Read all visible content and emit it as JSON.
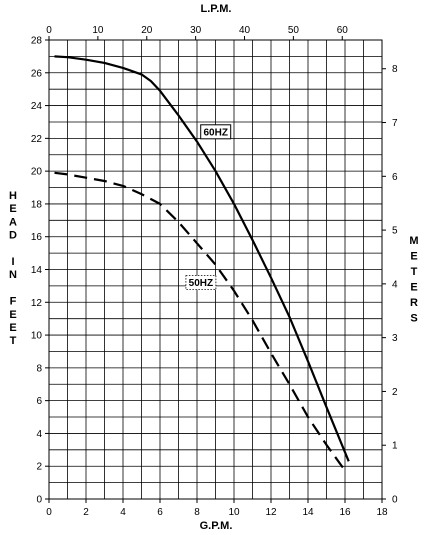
{
  "chart_data": {
    "type": "line",
    "top_axis_label": "L.P.M.",
    "bottom_axis_label": "G.P.M.",
    "left_axis_label": "HEAD IN FEET",
    "left_axis_label_lines": [
      "H",
      "E",
      "A",
      "D",
      "",
      "I",
      "N",
      "",
      "F",
      "E",
      "E",
      "T"
    ],
    "right_axis_label": "METERS",
    "right_axis_label_lines": [
      "M",
      "E",
      "T",
      "E",
      "R",
      "S"
    ],
    "x_gpm_range": [
      0,
      18
    ],
    "x_gpm_ticks": [
      0,
      2,
      4,
      6,
      8,
      10,
      12,
      14,
      16,
      18
    ],
    "x_lpm_ticks": [
      0,
      10,
      20,
      30,
      40,
      50,
      60
    ],
    "lpm_per_gpm": 3.785,
    "y_feet_range": [
      0,
      28
    ],
    "y_feet_ticks": [
      0,
      2,
      4,
      6,
      8,
      10,
      12,
      14,
      16,
      18,
      20,
      22,
      24,
      26,
      28
    ],
    "y_meters_ticks": [
      0,
      1,
      2,
      3,
      4,
      5,
      6,
      7,
      8
    ],
    "feet_per_meter": 3.2808,
    "grid": true,
    "series": [
      {
        "name": "60HZ",
        "style": "solid",
        "x": [
          0.3,
          1,
          2,
          3,
          4,
          5,
          5.5,
          6,
          7,
          8,
          9,
          10,
          11,
          12,
          13,
          14,
          15,
          16.2
        ],
        "y": [
          27.0,
          26.95,
          26.8,
          26.6,
          26.3,
          25.9,
          25.5,
          24.9,
          23.4,
          21.8,
          20.0,
          18.0,
          15.8,
          13.5,
          11.1,
          8.4,
          5.6,
          2.3
        ]
      },
      {
        "name": "50HZ",
        "style": "dashed",
        "x": [
          0.3,
          1,
          2,
          3,
          4,
          5,
          6,
          7,
          8,
          9,
          10,
          11,
          12,
          13,
          14,
          15,
          15.9
        ],
        "y": [
          19.9,
          19.8,
          19.6,
          19.4,
          19.1,
          18.6,
          18.0,
          16.9,
          15.6,
          14.3,
          12.7,
          10.9,
          8.9,
          7.0,
          5.0,
          3.3,
          1.9
        ]
      }
    ]
  }
}
